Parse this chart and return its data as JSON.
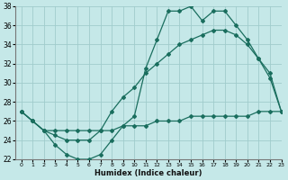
{
  "xlabel": "Humidex (Indice chaleur)",
  "bg_color": "#c5e8e8",
  "grid_color": "#a0cccc",
  "line_color": "#1a6e5e",
  "line1": {
    "x": [
      0,
      1,
      2,
      3,
      4,
      5,
      6,
      7,
      8,
      9,
      10,
      11,
      12,
      13,
      14,
      15,
      16,
      17,
      18,
      19,
      20,
      21,
      22,
      23
    ],
    "y": [
      27,
      26,
      25,
      23.5,
      22.5,
      22,
      22,
      22.5,
      24,
      25.5,
      26.5,
      31.5,
      34.5,
      37.5,
      37.5,
      38,
      36.5,
      37.5,
      37.5,
      36,
      34.5,
      32.5,
      30.5,
      27
    ]
  },
  "line2": {
    "x": [
      0,
      1,
      2,
      3,
      4,
      5,
      6,
      7,
      8,
      9,
      10,
      11,
      12,
      13,
      14,
      15,
      16,
      17,
      18,
      19,
      20,
      21,
      22,
      23
    ],
    "y": [
      27,
      26,
      25,
      24.5,
      24,
      24,
      24,
      25,
      27,
      28.5,
      29.5,
      31,
      32,
      33,
      34,
      34.5,
      35,
      35.5,
      35.5,
      35,
      34,
      32.5,
      31,
      27
    ]
  },
  "line3": {
    "x": [
      0,
      1,
      2,
      3,
      4,
      5,
      6,
      7,
      8,
      9,
      10,
      11,
      12,
      13,
      14,
      15,
      16,
      17,
      18,
      19,
      20,
      21,
      22,
      23
    ],
    "y": [
      27,
      26,
      25,
      25,
      25,
      25,
      25,
      25,
      25,
      25.5,
      25.5,
      25.5,
      26,
      26,
      26,
      26.5,
      26.5,
      26.5,
      26.5,
      26.5,
      26.5,
      27,
      27,
      27
    ]
  },
  "ylim": [
    22,
    38
  ],
  "xlim": [
    -0.5,
    23
  ],
  "yticks": [
    22,
    24,
    26,
    28,
    30,
    32,
    34,
    36,
    38
  ],
  "xticks": [
    0,
    1,
    2,
    3,
    4,
    5,
    6,
    7,
    8,
    9,
    10,
    11,
    12,
    13,
    14,
    15,
    16,
    17,
    18,
    19,
    20,
    21,
    22,
    23
  ],
  "marker": "D",
  "marker_size": 2.0,
  "line_width": 0.9
}
